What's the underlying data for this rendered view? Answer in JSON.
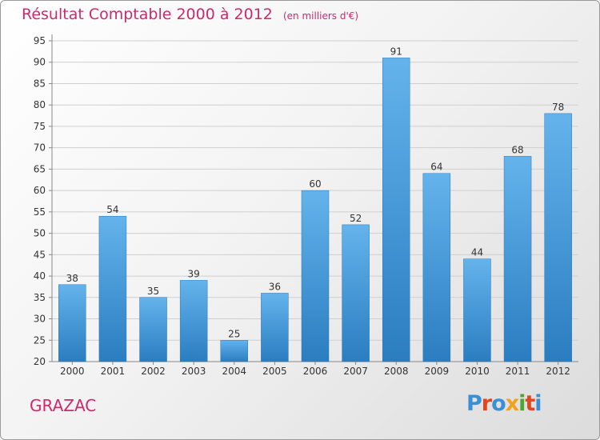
{
  "header": {
    "title": "Résultat Comptable 2000 à 2012",
    "subtitle": "(en milliers d'€)"
  },
  "footer": {
    "commune": "GRAZAC",
    "logo": "Proxiti"
  },
  "colors": {
    "bar_light": "#64b3ec",
    "bar_dark": "#2a7dc0",
    "title": "#cc2a6a",
    "logo": [
      "#3b8fd6",
      "#e0471f",
      "#3b8fd6",
      "#f2a01e",
      "#4aa832",
      "#e0471f",
      "#3b8fd6"
    ]
  },
  "chart_data": {
    "type": "bar",
    "title": "Résultat Comptable 2000 à 2012",
    "subtitle": "(en milliers d'€)",
    "categories": [
      "2000",
      "2001",
      "2002",
      "2003",
      "2004",
      "2005",
      "2006",
      "2007",
      "2008",
      "2009",
      "2010",
      "2011",
      "2012"
    ],
    "values": [
      38,
      54,
      35,
      39,
      25,
      36,
      60,
      52,
      91,
      64,
      44,
      68,
      78
    ],
    "ylim": [
      20,
      95
    ],
    "yticks": [
      20,
      25,
      30,
      35,
      40,
      45,
      50,
      55,
      60,
      65,
      70,
      75,
      80,
      85,
      90,
      95
    ],
    "grid": "horizontal",
    "data_labels": true
  }
}
